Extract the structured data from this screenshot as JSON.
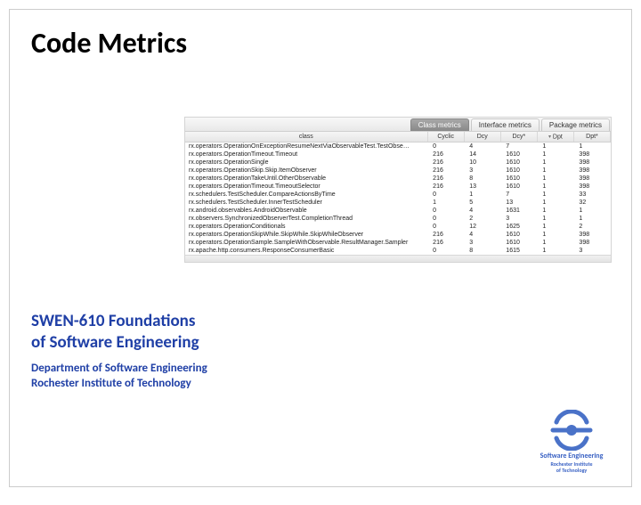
{
  "title": "Code Metrics",
  "tabs": [
    {
      "label": "Class metrics",
      "active": true
    },
    {
      "label": "Interface metrics",
      "active": false
    },
    {
      "label": "Package metrics",
      "active": false
    }
  ],
  "table": {
    "type": "table",
    "background_color": "#ffffff",
    "header_bg": "#eeeeee",
    "grid_color": "#d8d8d8",
    "font_size_pt": 7,
    "text_color": "#222222",
    "columns": [
      {
        "key": "class",
        "label": "class",
        "align": "left",
        "width_pct": 57
      },
      {
        "key": "cyclic",
        "label": "Cyclic",
        "align": "left",
        "width_pct": 8.6
      },
      {
        "key": "dcy",
        "label": "Dcy",
        "align": "left",
        "width_pct": 8.6
      },
      {
        "key": "dcy_star",
        "label": "Dcy*",
        "align": "left",
        "width_pct": 8.6
      },
      {
        "key": "dpt",
        "label": "Dpt",
        "align": "left",
        "width_pct": 8.6,
        "filter": true
      },
      {
        "key": "dpt_star",
        "label": "Dpt*",
        "align": "left",
        "width_pct": 8.6
      }
    ],
    "rows": [
      [
        "rx.operators.OperationOnExceptionResumeNextViaObservableTest.TestObse…",
        "0",
        "4",
        "7",
        "1",
        "1"
      ],
      [
        "rx.operators.OperationTimeout.Timeout",
        "216",
        "14",
        "1610",
        "1",
        "398"
      ],
      [
        "rx.operators.OperationSingle",
        "216",
        "10",
        "1610",
        "1",
        "398"
      ],
      [
        "rx.operators.OperationSkip.Skip.ItemObserver",
        "216",
        "3",
        "1610",
        "1",
        "398"
      ],
      [
        "rx.operators.OperationTakeUntil.OtherObservable",
        "216",
        "8",
        "1610",
        "1",
        "398"
      ],
      [
        "rx.operators.OperationTimeout.TimeoutSelector",
        "216",
        "13",
        "1610",
        "1",
        "398"
      ],
      [
        "rx.schedulers.TestScheduler.CompareActionsByTime",
        "0",
        "1",
        "7",
        "1",
        "33"
      ],
      [
        "rx.schedulers.TestScheduler.InnerTestScheduler",
        "1",
        "5",
        "13",
        "1",
        "32"
      ],
      [
        "rx.android.observables.AndroidObservable",
        "0",
        "4",
        "1631",
        "1",
        "1"
      ],
      [
        "rx.observers.SynchronizedObserverTest.CompletionThread",
        "0",
        "2",
        "3",
        "1",
        "1"
      ],
      [
        "rx.operators.OperationConditionals",
        "0",
        "12",
        "1625",
        "1",
        "2"
      ],
      [
        "rx.operators.OperationSkipWhile.SkipWhile.SkipWhileObserver",
        "216",
        "4",
        "1610",
        "1",
        "398"
      ],
      [
        "rx.operators.OperationSample.SampleWithObservable.ResultManager.Sampler",
        "216",
        "3",
        "1610",
        "1",
        "398"
      ],
      [
        "rx.apache.http.consumers.ResponseConsumerBasic",
        "0",
        "8",
        "1615",
        "1",
        "3"
      ]
    ]
  },
  "course": {
    "line1": "SWEN-610 Foundations",
    "line2": "of Software Engineering",
    "dept": "Department of Software Engineering",
    "inst": "Rochester Institute of Technology"
  },
  "logo": {
    "stroke_color": "#4a72c8",
    "text1": "Software Engineering",
    "text2a": "Rochester Institute",
    "text2b": "of Technology"
  }
}
